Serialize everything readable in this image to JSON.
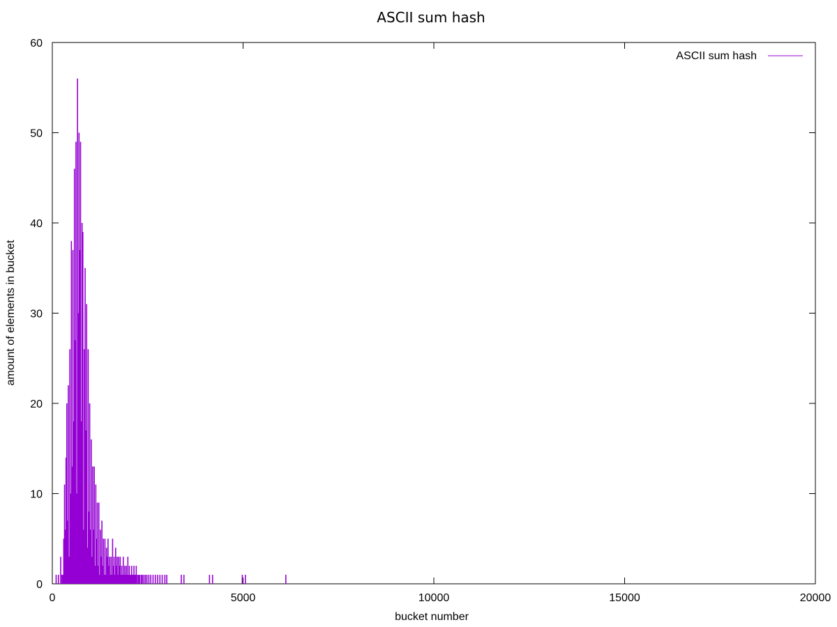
{
  "chart_data": {
    "type": "histogram",
    "title": "ASCII sum hash",
    "xlabel": "bucket number",
    "ylabel": "amount of elements in bucket",
    "xlim": [
      0,
      20000
    ],
    "ylim": [
      0,
      60
    ],
    "xticks": [
      "0",
      "5000",
      "10000",
      "15000",
      "20000"
    ],
    "yticks": [
      "0",
      "10",
      "20",
      "30",
      "40",
      "50",
      "60"
    ],
    "grid": false,
    "legend_position": "top-right",
    "series": [
      {
        "name": "ASCII sum hash",
        "color": "#9400d3",
        "style": "impulses",
        "x": [
          100,
          160,
          220,
          250,
          280,
          300,
          320,
          340,
          360,
          380,
          400,
          420,
          440,
          460,
          480,
          500,
          520,
          540,
          560,
          580,
          600,
          620,
          640,
          660,
          680,
          700,
          720,
          740,
          760,
          780,
          800,
          820,
          840,
          860,
          880,
          900,
          920,
          940,
          960,
          980,
          1000,
          1020,
          1040,
          1060,
          1080,
          1100,
          1120,
          1140,
          1160,
          1180,
          1200,
          1220,
          1240,
          1260,
          1280,
          1300,
          1320,
          1340,
          1360,
          1380,
          1400,
          1420,
          1440,
          1460,
          1480,
          1500,
          1520,
          1540,
          1560,
          1580,
          1600,
          1620,
          1640,
          1660,
          1680,
          1700,
          1720,
          1740,
          1760,
          1780,
          1800,
          1820,
          1840,
          1860,
          1880,
          1900,
          1920,
          1940,
          1960,
          1980,
          2000,
          2020,
          2040,
          2060,
          2080,
          2100,
          2120,
          2140,
          2160,
          2180,
          2200,
          2230,
          2260,
          2290,
          2330,
          2360,
          2400,
          2440,
          2480,
          2530,
          2580,
          2640,
          2700,
          2760,
          2820,
          2880,
          2950,
          3000,
          3380,
          3450,
          4120,
          4200,
          4980,
          5060,
          6120
        ],
        "y": [
          1,
          1,
          3,
          1,
          1,
          5,
          11,
          6,
          14,
          20,
          7,
          22,
          3,
          26,
          10,
          38,
          13,
          37,
          18,
          46,
          27,
          49,
          10,
          56,
          30,
          50,
          37,
          49,
          18,
          40,
          39,
          6,
          26,
          35,
          17,
          31,
          4,
          26,
          8,
          20,
          6,
          16,
          3,
          13,
          6,
          13,
          2,
          11,
          5,
          9,
          2,
          9,
          1,
          6,
          3,
          7,
          2,
          5,
          1,
          5,
          1,
          4,
          3,
          5,
          2,
          3,
          1,
          3,
          1,
          5,
          2,
          3,
          1,
          4,
          2,
          3,
          1,
          3,
          2,
          3,
          1,
          2,
          1,
          3,
          1,
          2,
          1,
          2,
          1,
          3,
          1,
          2,
          1,
          1,
          2,
          1,
          1,
          2,
          1,
          1,
          2,
          1,
          1,
          1,
          1,
          1,
          1,
          1,
          1,
          1,
          1,
          1,
          1,
          1,
          1,
          1,
          1,
          1,
          1,
          1,
          1,
          1,
          1,
          1,
          1
        ]
      }
    ]
  }
}
